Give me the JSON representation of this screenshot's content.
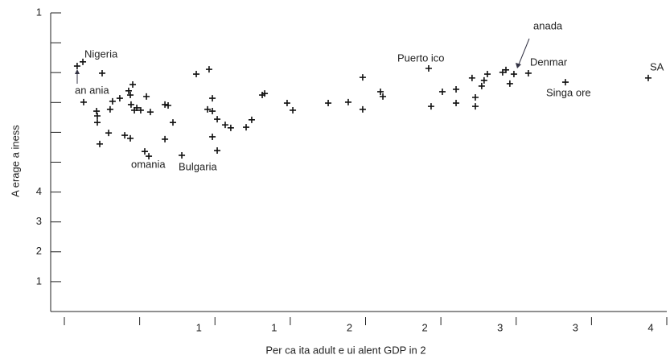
{
  "chart_data": {
    "type": "scatter",
    "x_label": "Per ca ita adult e ui alent GDP in 2",
    "y_label": "A erage a iness",
    "xlim": [
      0,
      40000
    ],
    "ylim": [
      0,
      10
    ],
    "xticks": [
      {
        "value": 10000,
        "label": "1"
      },
      {
        "value": 15000,
        "label": "1"
      },
      {
        "value": 20000,
        "label": "2"
      },
      {
        "value": 25000,
        "label": "2"
      },
      {
        "value": 30000,
        "label": "3"
      },
      {
        "value": 35000,
        "label": "3"
      },
      {
        "value": 40000,
        "label": "4"
      }
    ],
    "xminor": [
      0,
      5000
    ],
    "yticks": [
      1,
      2,
      3,
      4,
      {
        "value": 10,
        "label": "1"
      }
    ],
    "yminor": [
      0,
      5,
      6,
      7,
      8,
      9
    ],
    "color": "#111111",
    "x": [
      850,
      1230,
      2510,
      1280,
      2140,
      2190,
      2190,
      2350,
      2940,
      3040,
      3200,
      3680,
      4270,
      4540,
      4380,
      4650,
      4430,
      4810,
      5070,
      5450,
      5710,
      6680,
      6890,
      7210,
      6680,
      4010,
      4380,
      5340,
      5610,
      7800,
      8760,
      9610,
      9830,
      9510,
      9830,
      10150,
      10680,
      11050,
      9830,
      10150,
      12070,
      12440,
      13140,
      13300,
      14790,
      15170,
      17520,
      18850,
      19810,
      19810,
      20990,
      21150,
      24190,
      24350,
      25100,
      26010,
      26010,
      27070,
      27290,
      27290,
      27710,
      27870,
      28090,
      29100,
      29320,
      29580,
      29850,
      30810,
      33270,
      38770
    ],
    "values": [
      8.22,
      8.36,
      7.98,
      7.01,
      6.71,
      6.55,
      6.33,
      5.61,
      5.98,
      6.77,
      7.04,
      7.14,
      7.39,
      7.6,
      7.25,
      6.74,
      6.93,
      6.82,
      6.74,
      7.2,
      6.68,
      6.93,
      6.9,
      6.33,
      5.77,
      5.9,
      5.8,
      5.36,
      5.2,
      5.23,
      7.95,
      8.11,
      7.14,
      6.77,
      6.71,
      6.44,
      6.25,
      6.15,
      5.85,
      5.39,
      6.17,
      6.42,
      7.25,
      7.3,
      6.98,
      6.74,
      6.98,
      7.01,
      7.84,
      6.77,
      7.36,
      7.2,
      8.14,
      6.87,
      7.36,
      7.44,
      6.98,
      7.82,
      7.17,
      6.87,
      7.55,
      7.74,
      7.95,
      8.01,
      8.09,
      7.63,
      7.95,
      7.98,
      7.68,
      7.82
    ],
    "annotations": [
      "Nigeria",
      "an ania",
      "omania",
      "Bulgaria",
      "Puerto ico",
      "anada",
      "Denmar",
      "Singa ore",
      "SA"
    ]
  }
}
